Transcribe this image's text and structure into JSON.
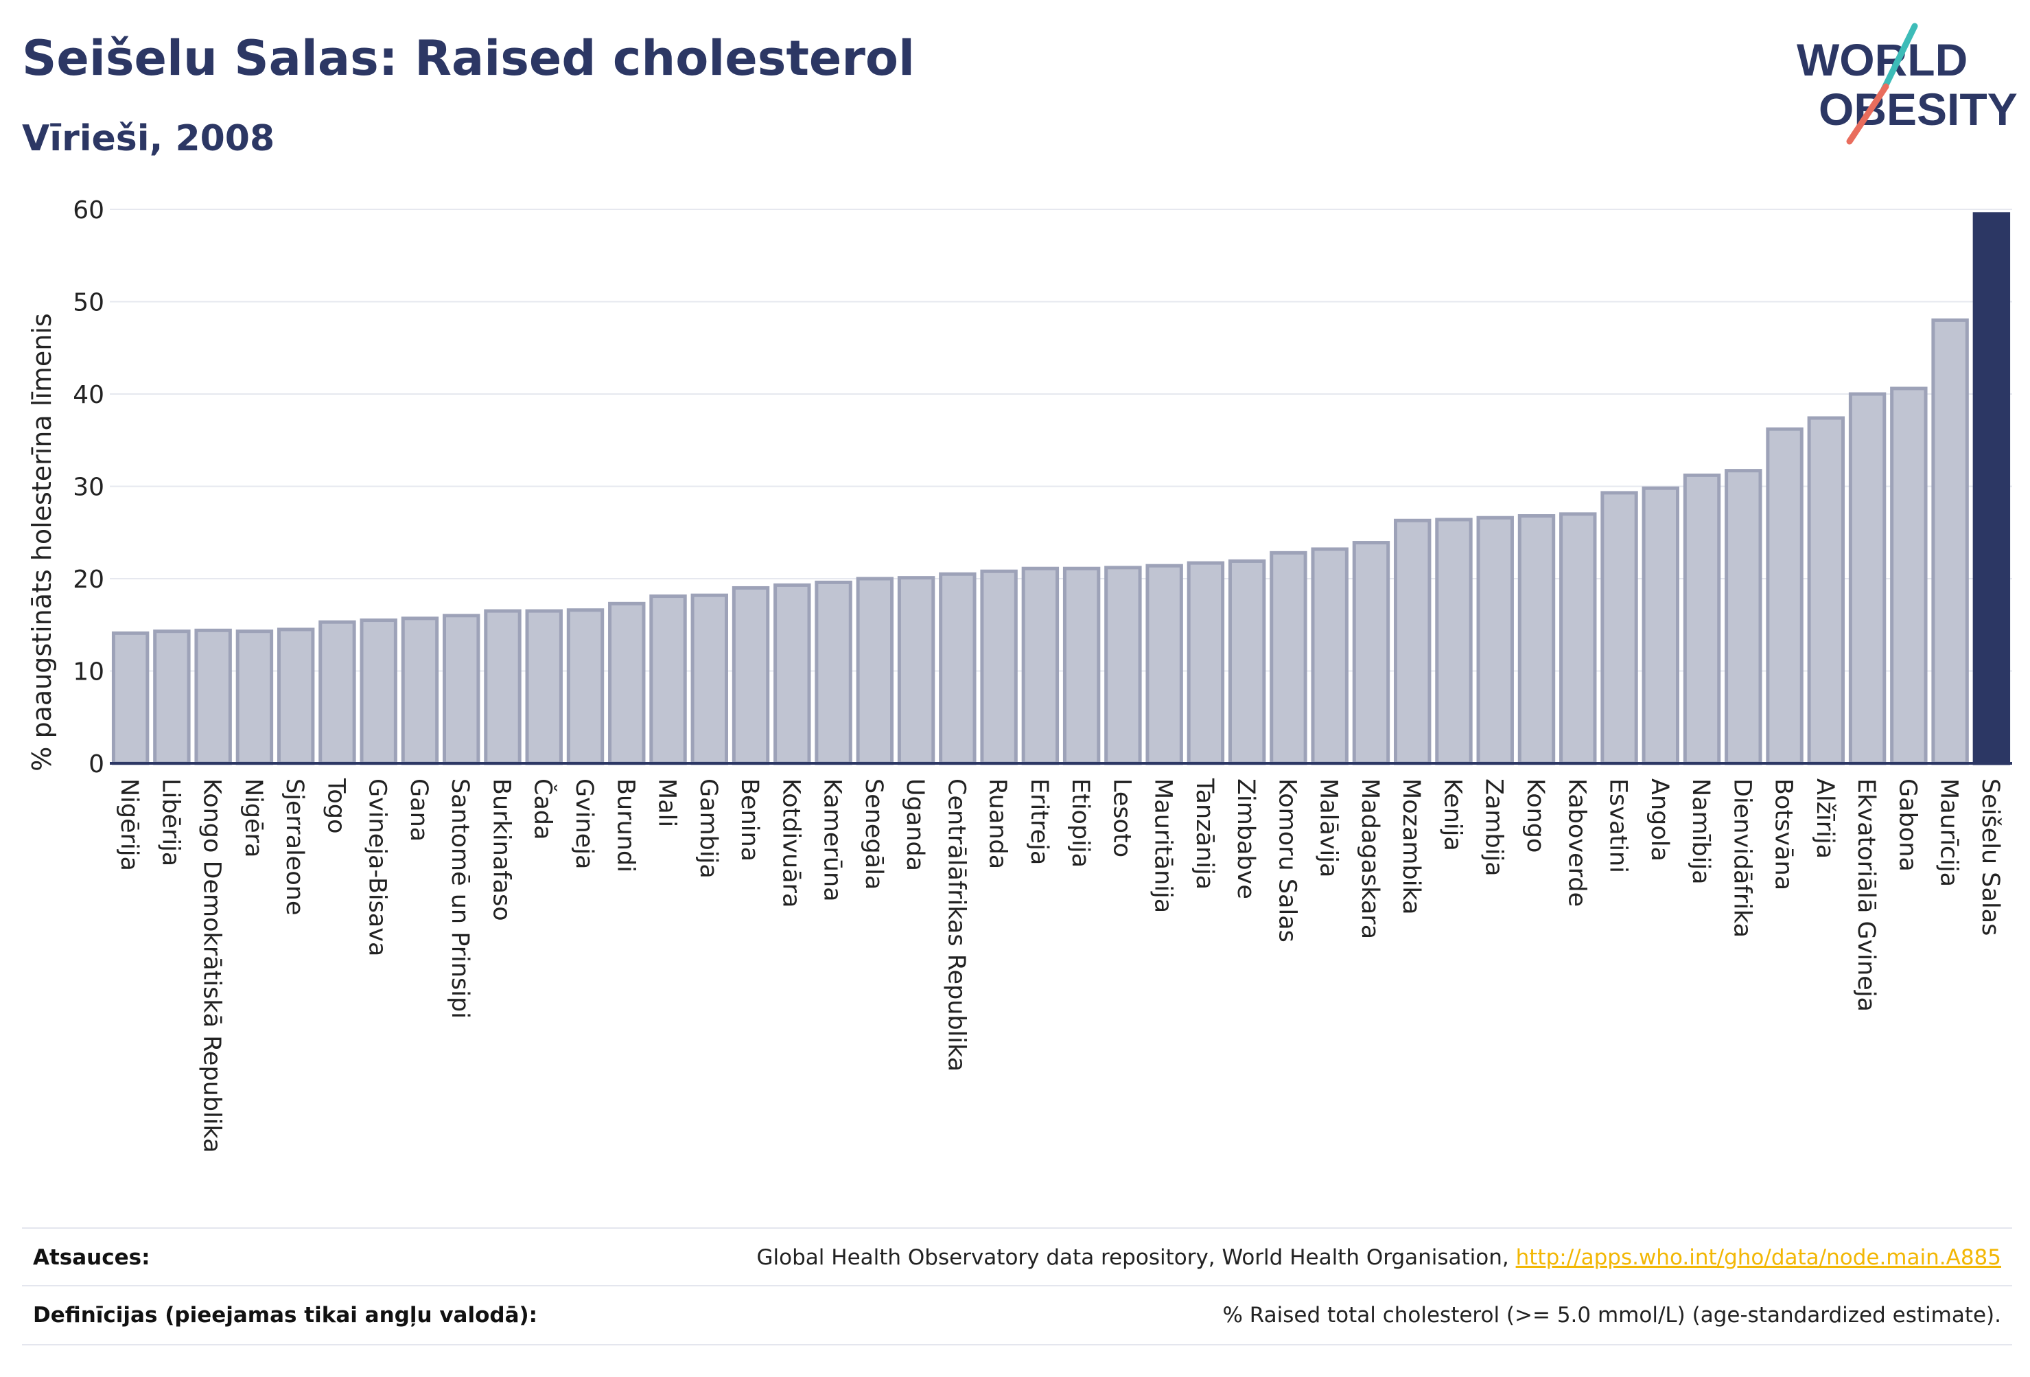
{
  "header": {
    "title": "Seišelu Salas: Raised cholesterol",
    "subtitle": "Vīrieši, 2008",
    "logo_line1": "WORLD",
    "logo_line2": "OBESITY"
  },
  "chart_data": {
    "type": "bar",
    "ylabel": "% paaugstināts holesterīna līmenis",
    "xlabel": "",
    "ylim": [
      0,
      60
    ],
    "yticks": [
      0,
      10,
      20,
      30,
      40,
      50,
      60
    ],
    "grid": true,
    "highlight": "Seišelu Salas",
    "categories": [
      "Nigērija",
      "Libērija",
      "Kongo Demokrātiskā Republika",
      "Nigēra",
      "Sjerraleone",
      "Togo",
      "Gvineja-Bisava",
      "Gana",
      "Santomē un Prinsipi",
      "Burkinafaso",
      "Čada",
      "Gvineja",
      "Burundi",
      "Mali",
      "Gambija",
      "Benina",
      "Kotdivuāra",
      "Kamerūna",
      "Senegāla",
      "Uganda",
      "Centrālāfrikas Republika",
      "Ruanda",
      "Eritreja",
      "Etiopija",
      "Lesoto",
      "Mauritānija",
      "Tanzānija",
      "Zimbabve",
      "Komoru Salas",
      "Malāvija",
      "Madagaskara",
      "Mozambika",
      "Kenija",
      "Zambija",
      "Kongo",
      "Kaboverde",
      "Esvatini",
      "Angola",
      "Namībija",
      "Dienvidāfrika",
      "Botsvāna",
      "Alžīrija",
      "Ekvatoriālā Gvineja",
      "Gabona",
      "Maurīcija",
      "Seišelu Salas"
    ],
    "values": [
      14.1,
      14.3,
      14.4,
      14.3,
      14.5,
      15.3,
      15.5,
      15.7,
      16.0,
      16.5,
      16.5,
      16.6,
      17.3,
      18.1,
      18.2,
      19.0,
      19.3,
      19.6,
      20.0,
      20.1,
      20.5,
      20.8,
      21.1,
      21.1,
      21.2,
      21.4,
      21.7,
      21.9,
      22.8,
      23.2,
      23.9,
      26.3,
      26.4,
      26.6,
      26.8,
      27.0,
      29.3,
      29.8,
      31.2,
      31.7,
      36.2,
      37.4,
      40.0,
      40.6,
      48.0,
      59.5
    ],
    "colors": {
      "bar": "#c0c4d2",
      "bar_edge": "#9da2b8",
      "highlight": "#2c3764",
      "grid": "#e6e8ef",
      "axis": "#2c3764"
    }
  },
  "footer": {
    "sources_label": "Atsauces:",
    "sources_text": "Global Health Observatory data repository, World Health Organisation, ",
    "sources_link": "http://apps.who.int/gho/data/node.main.A885",
    "definitions_label": "Definīcijas (pieejamas tikai angļu valodā):",
    "definitions_text": "% Raised total cholesterol (>= 5.0 mmol/L) (age-standardized estimate)."
  }
}
